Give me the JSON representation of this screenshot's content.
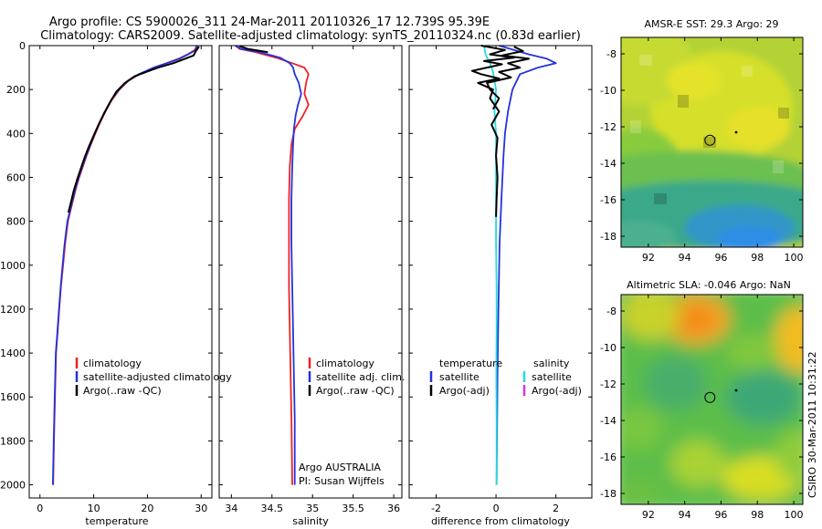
{
  "header": {
    "line1": "Argo profile: CS 5900026_311 24-Mar-2011 20110326_17 12.739S 95.39E",
    "line2": "Climatology: CARS2009. Satellite-adjusted climatology: synTS_20110324.nc (0.83d earlier)"
  },
  "side_label": "CSIRO 30-Mar-2011 10:31:22",
  "colors": {
    "red": "#ee2222",
    "blue": "#2233dd",
    "black": "#000000",
    "cyan": "#22dddd",
    "magenta": "#dd33dd"
  },
  "chart_data": [
    {
      "type": "line",
      "id": "temperature",
      "xlabel": "temperature",
      "ylabel": "",
      "xlim": [
        -2,
        32
      ],
      "ylim": [
        2060,
        0
      ],
      "xticks": [
        0,
        10,
        20,
        30
      ],
      "yticks": [
        0,
        200,
        400,
        600,
        800,
        1000,
        1200,
        1400,
        1600,
        1800,
        2000
      ],
      "legend": [
        "climatology",
        "satellite-adjusted climatology",
        "Argo(..raw -QC)"
      ],
      "series": [
        {
          "name": "climatology",
          "color": "red",
          "x": [
            29.2,
            28.8,
            27.5,
            25.8,
            23.5,
            21.2,
            18.5,
            16.5,
            14.8,
            13.3,
            12.2,
            11.2,
            10.3,
            9.5,
            8.7,
            8.0,
            7.3,
            6.7,
            6.2,
            5.7,
            5.2,
            4.7,
            4.3,
            3.9,
            3.6,
            3.3,
            3.0,
            2.8,
            2.6,
            2.45
          ],
          "y": [
            0,
            20,
            40,
            60,
            80,
            100,
            130,
            160,
            200,
            250,
            300,
            350,
            400,
            450,
            500,
            550,
            600,
            650,
            700,
            750,
            800,
            900,
            1000,
            1100,
            1200,
            1300,
            1400,
            1600,
            1800,
            2000
          ]
        },
        {
          "name": "satellite-adjusted climatology",
          "color": "blue",
          "x": [
            29.3,
            29.0,
            27.6,
            26.0,
            23.6,
            21.2,
            18.4,
            16.4,
            14.7,
            13.2,
            12.1,
            11.1,
            10.2,
            9.4,
            8.6,
            7.9,
            7.2,
            6.6,
            6.1,
            5.6,
            5.1,
            4.6,
            4.2,
            3.85,
            3.55,
            3.25,
            2.95,
            2.75,
            2.55,
            2.4
          ],
          "y": [
            0,
            20,
            40,
            60,
            80,
            100,
            130,
            160,
            200,
            250,
            300,
            350,
            400,
            450,
            500,
            550,
            600,
            650,
            700,
            750,
            800,
            900,
            1000,
            1100,
            1200,
            1300,
            1400,
            1600,
            1800,
            2000
          ]
        },
        {
          "name": "Argo(..raw -QC)",
          "color": "black",
          "x": [
            29.6,
            29.0,
            28.6,
            27.0,
            24.8,
            22.0,
            20.3,
            17.6,
            15.8,
            14.2,
            13.0,
            11.9,
            10.9,
            10.0,
            9.1,
            8.3,
            7.6,
            6.9,
            6.3,
            5.8,
            5.3
          ],
          "y": [
            5,
            25,
            45,
            60,
            80,
            100,
            115,
            140,
            170,
            210,
            260,
            310,
            360,
            410,
            460,
            510,
            560,
            610,
            660,
            710,
            760
          ]
        }
      ]
    },
    {
      "type": "line",
      "id": "salinity",
      "xlabel": "salinity",
      "xlim": [
        33.85,
        36.1
      ],
      "ylim": [
        2060,
        0
      ],
      "xticks": [
        34,
        34.5,
        35,
        35.5,
        36
      ],
      "xtick_labels": [
        "34",
        "34.5",
        "35",
        "35.5",
        "36"
      ],
      "legend": [
        "climatology",
        "satellite adj. clim.",
        "Argo(..raw -QC)"
      ],
      "annotations": [
        "Argo AUSTRALIA",
        "PI: Susan Wijffels"
      ],
      "series": [
        {
          "name": "climatology",
          "color": "red",
          "x": [
            34.05,
            34.1,
            34.3,
            34.55,
            34.75,
            34.9,
            34.95,
            34.92,
            34.9,
            34.95,
            34.88,
            34.78,
            34.74,
            34.72,
            34.71,
            34.71,
            34.71,
            34.72,
            34.73,
            34.74,
            34.75
          ],
          "y": [
            0,
            15,
            30,
            55,
            80,
            100,
            130,
            170,
            220,
            270,
            320,
            380,
            450,
            550,
            700,
            900,
            1100,
            1300,
            1500,
            1700,
            2000
          ]
        },
        {
          "name": "satellite adj. clim.",
          "color": "blue",
          "x": [
            34.05,
            34.12,
            34.35,
            34.6,
            34.72,
            34.76,
            34.78,
            34.83,
            34.86,
            34.82,
            34.79,
            34.77,
            34.76,
            34.75,
            34.74,
            34.74,
            34.75,
            34.76,
            34.77,
            34.78,
            34.78
          ],
          "y": [
            0,
            15,
            30,
            55,
            80,
            100,
            130,
            170,
            220,
            270,
            320,
            380,
            450,
            550,
            700,
            900,
            1100,
            1300,
            1500,
            1700,
            2000
          ]
        },
        {
          "name": "Argo(..raw -QC)",
          "color": "black",
          "x": [
            34.1,
            34.2,
            34.45
          ],
          "y": [
            2,
            15,
            30
          ]
        }
      ]
    },
    {
      "type": "line",
      "id": "difference",
      "xlabel": "difference from climatology",
      "xlim": [
        -2.9,
        3.2
      ],
      "ylim": [
        2060,
        0
      ],
      "xticks": [
        -2,
        0,
        2
      ],
      "legend_left_title": "temperature",
      "legend_right_title": "salinity",
      "legend_left": [
        "satellite",
        "Argo(-adj)"
      ],
      "legend_right": [
        "satellite",
        "Argo(-adj)"
      ],
      "series": [
        {
          "name": "temperature satellite",
          "color": "blue",
          "x": [
            0.1,
            1.1,
            1.7,
            2.0,
            1.4,
            0.8,
            0.55,
            0.4,
            0.3,
            0.25,
            0.18,
            0.12,
            0.08,
            0.05,
            0.03,
            0.02
          ],
          "y": [
            0,
            40,
            60,
            80,
            100,
            130,
            200,
            300,
            400,
            500,
            700,
            900,
            1200,
            1500,
            1800,
            2000
          ]
        },
        {
          "name": "salinity satellite",
          "color": "cyan",
          "x": [
            -0.4,
            -0.35,
            -0.2,
            -0.1,
            0.0,
            -0.05,
            0.0,
            0.0,
            0.0,
            0.0,
            0.02,
            0.02,
            0.01,
            0.02,
            0.02,
            0.02
          ],
          "y": [
            0,
            40,
            80,
            120,
            200,
            300,
            400,
            500,
            700,
            900,
            1100,
            1300,
            1500,
            1700,
            1900,
            2000
          ]
        },
        {
          "name": "temperature Argo(-adj)",
          "color": "black",
          "x": [
            -0.5,
            0.3,
            -0.2,
            0.6,
            -0.4,
            0.2,
            -0.3,
            -0.8,
            -0.5,
            0.1,
            -0.6,
            -0.1,
            -0.2,
            0.1,
            -0.15,
            0.05,
            0.0,
            0.05,
            0.02,
            0.0
          ],
          "y": [
            0,
            20,
            40,
            55,
            70,
            85,
            100,
            115,
            130,
            150,
            170,
            200,
            240,
            300,
            360,
            420,
            500,
            600,
            700,
            780
          ]
        },
        {
          "name": "salinity Argo(-adj)",
          "color": "black",
          "x": [
            0.6,
            0.9,
            0.2,
            1.1,
            0.4,
            0.8,
            0.1,
            0.5,
            -0.3,
            -0.2,
            0.1,
            -0.1
          ],
          "y": [
            5,
            25,
            45,
            60,
            80,
            100,
            120,
            145,
            170,
            200,
            240,
            290
          ]
        }
      ]
    },
    {
      "type": "heatmap",
      "id": "sst-map",
      "title": "AMSR-E SST: 29.3 Argo: 29",
      "xlim": [
        90.5,
        100.5
      ],
      "ylim": [
        -18.6,
        -7.1
      ],
      "xticks": [
        92,
        94,
        96,
        98,
        100
      ],
      "yticks": [
        -8,
        -10,
        -12,
        -14,
        -16,
        -18
      ],
      "argo_position": {
        "lon": 95.39,
        "lat": -12.739
      }
    },
    {
      "type": "heatmap",
      "id": "sla-map",
      "title": "Altimetric SLA: -0.046 Argo: NaN",
      "xlim": [
        90.5,
        100.5
      ],
      "ylim": [
        -18.6,
        -7.1
      ],
      "xticks": [
        92,
        94,
        96,
        98,
        100
      ],
      "yticks": [
        -8,
        -10,
        -12,
        -14,
        -16,
        -18
      ],
      "argo_position": {
        "lon": 95.39,
        "lat": -12.739
      }
    }
  ]
}
